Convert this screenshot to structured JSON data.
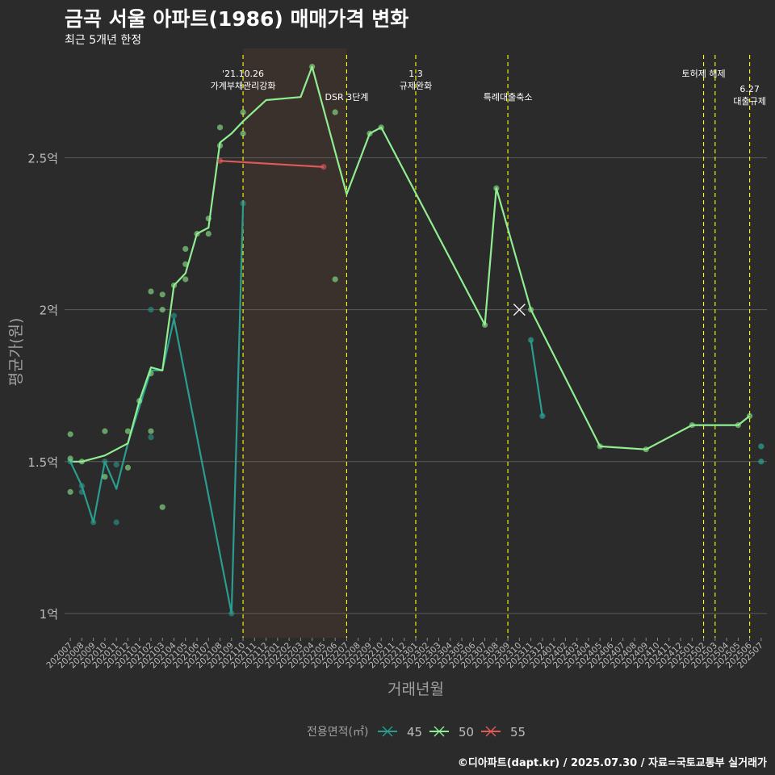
{
  "chart_data": {
    "type": "line",
    "title": "금곡 서울 아파트(1986) 매매가격 변화",
    "subtitle": "최근 5개년 한정",
    "xlabel": "거래년월",
    "ylabel": "평균가(원)",
    "caption": "©디아파트(dapt.kr) / 2025.07.30 / 자료=국토교통부 실거래가",
    "legend_title": "전용면적(㎡)",
    "ylim": [
      0.92,
      2.86
    ],
    "yticks": [
      {
        "v": 1.0,
        "label": "1억"
      },
      {
        "v": 1.5,
        "label": "1.5억"
      },
      {
        "v": 2.0,
        "label": "2억"
      },
      {
        "v": 2.5,
        "label": "2.5억"
      }
    ],
    "categories": [
      "202007",
      "202008",
      "202009",
      "202010",
      "202011",
      "202012",
      "202101",
      "202102",
      "202103",
      "202104",
      "202105",
      "202106",
      "202107",
      "202108",
      "202109",
      "202110",
      "202111",
      "202112",
      "202201",
      "202202",
      "202203",
      "202204",
      "202205",
      "202206",
      "202207",
      "202208",
      "202209",
      "202210",
      "202211",
      "202212",
      "202301",
      "202302",
      "202303",
      "202304",
      "202305",
      "202306",
      "202307",
      "202308",
      "202309",
      "202310",
      "202311",
      "202312",
      "202401",
      "202402",
      "202403",
      "202404",
      "202405",
      "202406",
      "202407",
      "202408",
      "202409",
      "202410",
      "202411",
      "202412",
      "202501",
      "202502",
      "202503",
      "202504",
      "202505",
      "202506",
      "202507"
    ],
    "colors": {
      "s45": "#2a9d8f",
      "s50": "#90ee90",
      "s55": "#e05a5a",
      "event": "#ffff00",
      "shade": "#3a302c"
    },
    "series": [
      {
        "name": "45",
        "line": [
          [
            0.5,
            1.5
          ],
          [
            1.5,
            1.42
          ],
          [
            2.5,
            1.3
          ],
          [
            3.5,
            1.5
          ],
          [
            4.5,
            1.41
          ],
          [
            5.5,
            1.56
          ],
          [
            6.5,
            1.68
          ],
          [
            7.5,
            1.8
          ],
          [
            8.5,
            1.8
          ],
          [
            9.5,
            1.97
          ],
          [
            14.5,
            1.0
          ],
          [
            15.5,
            2.35
          ]
        ],
        "points": [
          [
            0.5,
            1.5
          ],
          [
            1.5,
            1.42
          ],
          [
            1.5,
            1.4
          ],
          [
            2.5,
            1.3
          ],
          [
            3.5,
            1.5
          ],
          [
            4.5,
            1.49
          ],
          [
            4.5,
            1.3
          ],
          [
            7.5,
            1.58
          ],
          [
            7.5,
            2.0
          ],
          [
            9.5,
            1.98
          ],
          [
            14.5,
            1.0
          ],
          [
            15.5,
            2.35
          ]
        ]
      },
      {
        "name": "50",
        "line": [
          [
            0.5,
            1.5
          ],
          [
            1.5,
            1.5
          ],
          [
            3.5,
            1.52
          ],
          [
            5.5,
            1.56
          ],
          [
            6.5,
            1.7
          ],
          [
            7.5,
            1.81
          ],
          [
            8.5,
            1.8
          ],
          [
            9.5,
            2.08
          ],
          [
            10.5,
            2.12
          ],
          [
            11.5,
            2.25
          ],
          [
            12.5,
            2.27
          ],
          [
            13.5,
            2.55
          ],
          [
            14.5,
            2.58
          ],
          [
            15.5,
            2.62
          ],
          [
            17.5,
            2.69
          ],
          [
            20.5,
            2.7
          ],
          [
            21.5,
            2.8
          ],
          [
            24.5,
            2.38
          ],
          [
            26.5,
            2.58
          ],
          [
            27.5,
            2.6
          ],
          [
            36.5,
            1.95
          ],
          [
            37.5,
            2.4
          ],
          [
            40.5,
            2.0
          ],
          [
            46.5,
            1.55
          ],
          [
            50.5,
            1.54
          ],
          [
            54.5,
            1.62
          ],
          [
            58.5,
            1.62
          ],
          [
            59.5,
            1.65
          ]
        ],
        "points": [
          [
            0.5,
            1.59
          ],
          [
            0.5,
            1.51
          ],
          [
            0.5,
            1.4
          ],
          [
            1.5,
            1.5
          ],
          [
            3.5,
            1.6
          ],
          [
            3.5,
            1.45
          ],
          [
            5.5,
            1.6
          ],
          [
            5.5,
            1.48
          ],
          [
            6.5,
            1.7
          ],
          [
            7.5,
            2.06
          ],
          [
            7.5,
            1.79
          ],
          [
            7.5,
            1.6
          ],
          [
            8.5,
            2.05
          ],
          [
            8.5,
            2.0
          ],
          [
            8.5,
            1.35
          ],
          [
            9.5,
            2.08
          ],
          [
            10.5,
            2.2
          ],
          [
            10.5,
            2.15
          ],
          [
            10.5,
            2.1
          ],
          [
            11.5,
            2.25
          ],
          [
            12.5,
            2.3
          ],
          [
            12.5,
            2.25
          ],
          [
            13.5,
            2.6
          ],
          [
            13.5,
            2.54
          ],
          [
            15.5,
            2.65
          ],
          [
            15.5,
            2.58
          ],
          [
            21.5,
            2.8
          ],
          [
            23.5,
            2.65
          ],
          [
            23.5,
            2.1
          ],
          [
            26.5,
            2.58
          ],
          [
            27.5,
            2.6
          ],
          [
            36.5,
            1.95
          ],
          [
            37.5,
            2.4
          ],
          [
            40.5,
            2.0
          ],
          [
            46.5,
            1.55
          ],
          [
            50.5,
            1.54
          ],
          [
            54.5,
            1.62
          ],
          [
            58.5,
            1.62
          ],
          [
            59.5,
            1.65
          ]
        ]
      },
      {
        "name": "55",
        "line": [
          [
            13.5,
            2.49
          ],
          [
            22.5,
            2.47
          ]
        ],
        "points": [
          [
            13.5,
            2.49
          ],
          [
            22.5,
            2.47
          ]
        ]
      }
    ],
    "extra_points_45": [
      [
        60.5,
        1.55
      ],
      [
        60.5,
        1.5
      ],
      [
        40.5,
        1.9
      ],
      [
        41.5,
        1.65
      ]
    ],
    "marker_x": [
      39.5,
      2.0
    ],
    "shade_range": [
      15.5,
      24.5
    ],
    "events": [
      {
        "x": 15.5,
        "lines": [
          "'21.10.26",
          "가계부채관리강화"
        ],
        "row": 0
      },
      {
        "x": 24.5,
        "lines": [
          "DSR 3단계"
        ],
        "row": 1
      },
      {
        "x": 30.5,
        "lines": [
          "1.3",
          "규제완화"
        ],
        "row": 0
      },
      {
        "x": 38.5,
        "lines": [
          "특례대출축소"
        ],
        "row": 1
      },
      {
        "x": 55.5,
        "lines": [
          "토허제 해제"
        ],
        "row": 0
      },
      {
        "x": 56.5,
        "lines": [],
        "row": 0
      },
      {
        "x": 59.5,
        "lines": [
          "6.27",
          "대출규제"
        ],
        "row": 2
      }
    ]
  }
}
